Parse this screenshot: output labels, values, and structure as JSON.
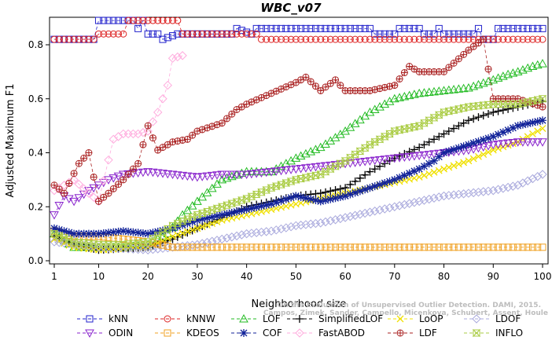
{
  "chart_data": {
    "type": "line",
    "title": "WBC_v07",
    "xlabel": "Neighborhood size",
    "ylabel": "Adjusted Maximum F1",
    "xlim": [
      1,
      100
    ],
    "ylim": [
      0,
      0.9
    ],
    "xticks": [
      1,
      10,
      20,
      30,
      40,
      50,
      60,
      70,
      80,
      90,
      100
    ],
    "yticks": [
      0.0,
      0.2,
      0.4,
      0.6,
      0.8
    ],
    "ytick_labels": [
      "0.0",
      "0.2",
      "0.4",
      "0.6",
      "0.8"
    ],
    "grid": false,
    "legend_position": "bottom",
    "watermark": [
      "Campos, Zimek, Sander, Campello, Micenkova, Schubert, Assent, Houle",
      "On the Evaluation of Unsupervised Outlier Detection. DAMI, 2015."
    ],
    "series": [
      {
        "name": "kNN",
        "color": "#2222cc",
        "marker": "square",
        "dash": "4,3",
        "points": [
          [
            1,
            0.82
          ],
          [
            2,
            0.82
          ],
          [
            9,
            0.82
          ],
          [
            10,
            0.89
          ],
          [
            17,
            0.89
          ],
          [
            18,
            0.86
          ],
          [
            19,
            0.89
          ],
          [
            20,
            0.84
          ],
          [
            22,
            0.84
          ],
          [
            23,
            0.82
          ],
          [
            26,
            0.84
          ],
          [
            37,
            0.84
          ],
          [
            38,
            0.86
          ],
          [
            41,
            0.84
          ],
          [
            42,
            0.86
          ],
          [
            65,
            0.86
          ],
          [
            66,
            0.84
          ],
          [
            70,
            0.84
          ],
          [
            71,
            0.86
          ],
          [
            75,
            0.86
          ],
          [
            76,
            0.84
          ],
          [
            78,
            0.84
          ],
          [
            79,
            0.86
          ],
          [
            80,
            0.84
          ],
          [
            86,
            0.84
          ],
          [
            87,
            0.86
          ],
          [
            88,
            0.82
          ],
          [
            90,
            0.82
          ],
          [
            91,
            0.86
          ],
          [
            100,
            0.86
          ]
        ]
      },
      {
        "name": "kNNW",
        "color": "#dd2222",
        "marker": "circle",
        "dash": "4,3",
        "points": [
          [
            1,
            0.82
          ],
          [
            9,
            0.82
          ],
          [
            10,
            0.84
          ],
          [
            15,
            0.84
          ],
          [
            16,
            0.89
          ],
          [
            26,
            0.89
          ],
          [
            27,
            0.84
          ],
          [
            42,
            0.84
          ],
          [
            43,
            0.82
          ],
          [
            100,
            0.82
          ]
        ]
      },
      {
        "name": "LOF",
        "color": "#22bb22",
        "marker": "triangle-up",
        "dash": "4,3",
        "points": [
          [
            1,
            0.1
          ],
          [
            5,
            0.05
          ],
          [
            10,
            0.05
          ],
          [
            15,
            0.05
          ],
          [
            20,
            0.06
          ],
          [
            24,
            0.1
          ],
          [
            27,
            0.17
          ],
          [
            30,
            0.22
          ],
          [
            35,
            0.3
          ],
          [
            40,
            0.33
          ],
          [
            45,
            0.33
          ],
          [
            50,
            0.38
          ],
          [
            55,
            0.42
          ],
          [
            60,
            0.48
          ],
          [
            65,
            0.55
          ],
          [
            68,
            0.58
          ],
          [
            70,
            0.6
          ],
          [
            75,
            0.62
          ],
          [
            80,
            0.63
          ],
          [
            85,
            0.64
          ],
          [
            90,
            0.67
          ],
          [
            93,
            0.69
          ],
          [
            95,
            0.7
          ],
          [
            98,
            0.72
          ],
          [
            100,
            0.73
          ]
        ]
      },
      {
        "name": "SimplifiedLOF",
        "color": "#000000",
        "marker": "plus",
        "dash": "4,3",
        "points": [
          [
            1,
            0.09
          ],
          [
            5,
            0.06
          ],
          [
            10,
            0.04
          ],
          [
            20,
            0.05
          ],
          [
            25,
            0.08
          ],
          [
            30,
            0.12
          ],
          [
            35,
            0.16
          ],
          [
            40,
            0.2
          ],
          [
            45,
            0.22
          ],
          [
            50,
            0.24
          ],
          [
            55,
            0.25
          ],
          [
            60,
            0.27
          ],
          [
            65,
            0.33
          ],
          [
            70,
            0.38
          ],
          [
            75,
            0.42
          ],
          [
            80,
            0.47
          ],
          [
            85,
            0.52
          ],
          [
            90,
            0.55
          ],
          [
            95,
            0.57
          ],
          [
            100,
            0.59
          ]
        ]
      },
      {
        "name": "LoOP",
        "color": "#f0e000",
        "marker": "x",
        "dash": "4,3",
        "points": [
          [
            1,
            0.08
          ],
          [
            5,
            0.05
          ],
          [
            10,
            0.04
          ],
          [
            20,
            0.05
          ],
          [
            25,
            0.09
          ],
          [
            30,
            0.12
          ],
          [
            35,
            0.15
          ],
          [
            40,
            0.17
          ],
          [
            45,
            0.19
          ],
          [
            50,
            0.21
          ],
          [
            55,
            0.23
          ],
          [
            60,
            0.25
          ],
          [
            65,
            0.27
          ],
          [
            70,
            0.29
          ],
          [
            75,
            0.31
          ],
          [
            80,
            0.34
          ],
          [
            85,
            0.37
          ],
          [
            90,
            0.41
          ],
          [
            95,
            0.44
          ],
          [
            100,
            0.49
          ]
        ]
      },
      {
        "name": "LDOF",
        "color": "#aaaadd",
        "marker": "diamond",
        "dash": "4,3",
        "points": [
          [
            1,
            0.07
          ],
          [
            10,
            0.05
          ],
          [
            20,
            0.04
          ],
          [
            25,
            0.05
          ],
          [
            30,
            0.06
          ],
          [
            35,
            0.08
          ],
          [
            40,
            0.1
          ],
          [
            45,
            0.11
          ],
          [
            50,
            0.13
          ],
          [
            55,
            0.14
          ],
          [
            60,
            0.16
          ],
          [
            65,
            0.18
          ],
          [
            70,
            0.2
          ],
          [
            75,
            0.22
          ],
          [
            80,
            0.24
          ],
          [
            85,
            0.25
          ],
          [
            90,
            0.26
          ],
          [
            95,
            0.28
          ],
          [
            100,
            0.32
          ]
        ]
      },
      {
        "name": "ODIN",
        "color": "#8822cc",
        "marker": "triangle-down",
        "dash": "4,3",
        "points": [
          [
            1,
            0.17
          ],
          [
            3,
            0.24
          ],
          [
            5,
            0.22
          ],
          [
            8,
            0.26
          ],
          [
            10,
            0.28
          ],
          [
            12,
            0.3
          ],
          [
            15,
            0.32
          ],
          [
            20,
            0.33
          ],
          [
            25,
            0.32
          ],
          [
            30,
            0.31
          ],
          [
            35,
            0.32
          ],
          [
            40,
            0.32
          ],
          [
            45,
            0.33
          ],
          [
            50,
            0.34
          ],
          [
            55,
            0.35
          ],
          [
            60,
            0.36
          ],
          [
            65,
            0.37
          ],
          [
            70,
            0.38
          ],
          [
            75,
            0.39
          ],
          [
            80,
            0.4
          ],
          [
            85,
            0.41
          ],
          [
            90,
            0.43
          ],
          [
            95,
            0.44
          ],
          [
            100,
            0.44
          ]
        ]
      },
      {
        "name": "KDEOS",
        "color": "#f0a020",
        "marker": "square",
        "dash": "4,3",
        "points": [
          [
            1,
            0.11
          ],
          [
            5,
            0.09
          ],
          [
            10,
            0.09
          ],
          [
            15,
            0.08
          ],
          [
            20,
            0.07
          ],
          [
            25,
            0.05
          ],
          [
            30,
            0.05
          ],
          [
            40,
            0.05
          ],
          [
            50,
            0.05
          ],
          [
            60,
            0.05
          ],
          [
            70,
            0.05
          ],
          [
            80,
            0.05
          ],
          [
            90,
            0.05
          ],
          [
            100,
            0.05
          ]
        ]
      },
      {
        "name": "COF",
        "color": "#112299",
        "marker": "star",
        "dash": "4,3",
        "points": [
          [
            1,
            0.12
          ],
          [
            5,
            0.1
          ],
          [
            10,
            0.1
          ],
          [
            15,
            0.11
          ],
          [
            20,
            0.1
          ],
          [
            25,
            0.12
          ],
          [
            30,
            0.15
          ],
          [
            35,
            0.17
          ],
          [
            40,
            0.19
          ],
          [
            45,
            0.21
          ],
          [
            50,
            0.24
          ],
          [
            55,
            0.22
          ],
          [
            60,
            0.24
          ],
          [
            65,
            0.27
          ],
          [
            70,
            0.3
          ],
          [
            75,
            0.34
          ],
          [
            78,
            0.37
          ],
          [
            80,
            0.4
          ],
          [
            85,
            0.43
          ],
          [
            90,
            0.46
          ],
          [
            95,
            0.5
          ],
          [
            100,
            0.52
          ]
        ]
      },
      {
        "name": "FastABOD",
        "color": "#ffaadd",
        "marker": "diamond",
        "dash": "4,3",
        "points": [
          [
            1,
            0.26
          ],
          [
            5,
            0.3
          ],
          [
            8,
            0.25
          ],
          [
            10,
            0.22
          ],
          [
            13,
            0.45
          ],
          [
            15,
            0.47
          ],
          [
            18,
            0.47
          ],
          [
            20,
            0.48
          ],
          [
            22,
            0.55
          ],
          [
            24,
            0.65
          ],
          [
            25,
            0.75
          ],
          [
            27,
            0.76
          ]
        ]
      },
      {
        "name": "LDF",
        "color": "#aa2222",
        "marker": "circle-plus",
        "dash": "4,3",
        "points": [
          [
            1,
            0.28
          ],
          [
            3,
            0.25
          ],
          [
            6,
            0.36
          ],
          [
            8,
            0.4
          ],
          [
            10,
            0.22
          ],
          [
            12,
            0.25
          ],
          [
            15,
            0.3
          ],
          [
            18,
            0.36
          ],
          [
            20,
            0.5
          ],
          [
            22,
            0.41
          ],
          [
            25,
            0.44
          ],
          [
            28,
            0.45
          ],
          [
            30,
            0.48
          ],
          [
            35,
            0.51
          ],
          [
            38,
            0.56
          ],
          [
            40,
            0.58
          ],
          [
            45,
            0.62
          ],
          [
            50,
            0.66
          ],
          [
            52,
            0.68
          ],
          [
            55,
            0.63
          ],
          [
            58,
            0.67
          ],
          [
            60,
            0.63
          ],
          [
            65,
            0.63
          ],
          [
            70,
            0.65
          ],
          [
            73,
            0.72
          ],
          [
            75,
            0.7
          ],
          [
            80,
            0.7
          ],
          [
            85,
            0.78
          ],
          [
            88,
            0.82
          ],
          [
            90,
            0.6
          ],
          [
            95,
            0.6
          ],
          [
            100,
            0.57
          ]
        ]
      },
      {
        "name": "INFLO",
        "color": "#aacc44",
        "marker": "hourglass",
        "dash": "4,3",
        "points": [
          [
            1,
            0.1
          ],
          [
            5,
            0.07
          ],
          [
            10,
            0.06
          ],
          [
            15,
            0.06
          ],
          [
            20,
            0.07
          ],
          [
            25,
            0.13
          ],
          [
            30,
            0.17
          ],
          [
            35,
            0.2
          ],
          [
            40,
            0.23
          ],
          [
            45,
            0.27
          ],
          [
            50,
            0.3
          ],
          [
            55,
            0.32
          ],
          [
            60,
            0.37
          ],
          [
            65,
            0.43
          ],
          [
            70,
            0.48
          ],
          [
            75,
            0.5
          ],
          [
            80,
            0.55
          ],
          [
            85,
            0.57
          ],
          [
            90,
            0.58
          ],
          [
            95,
            0.58
          ],
          [
            100,
            0.6
          ]
        ]
      }
    ]
  }
}
